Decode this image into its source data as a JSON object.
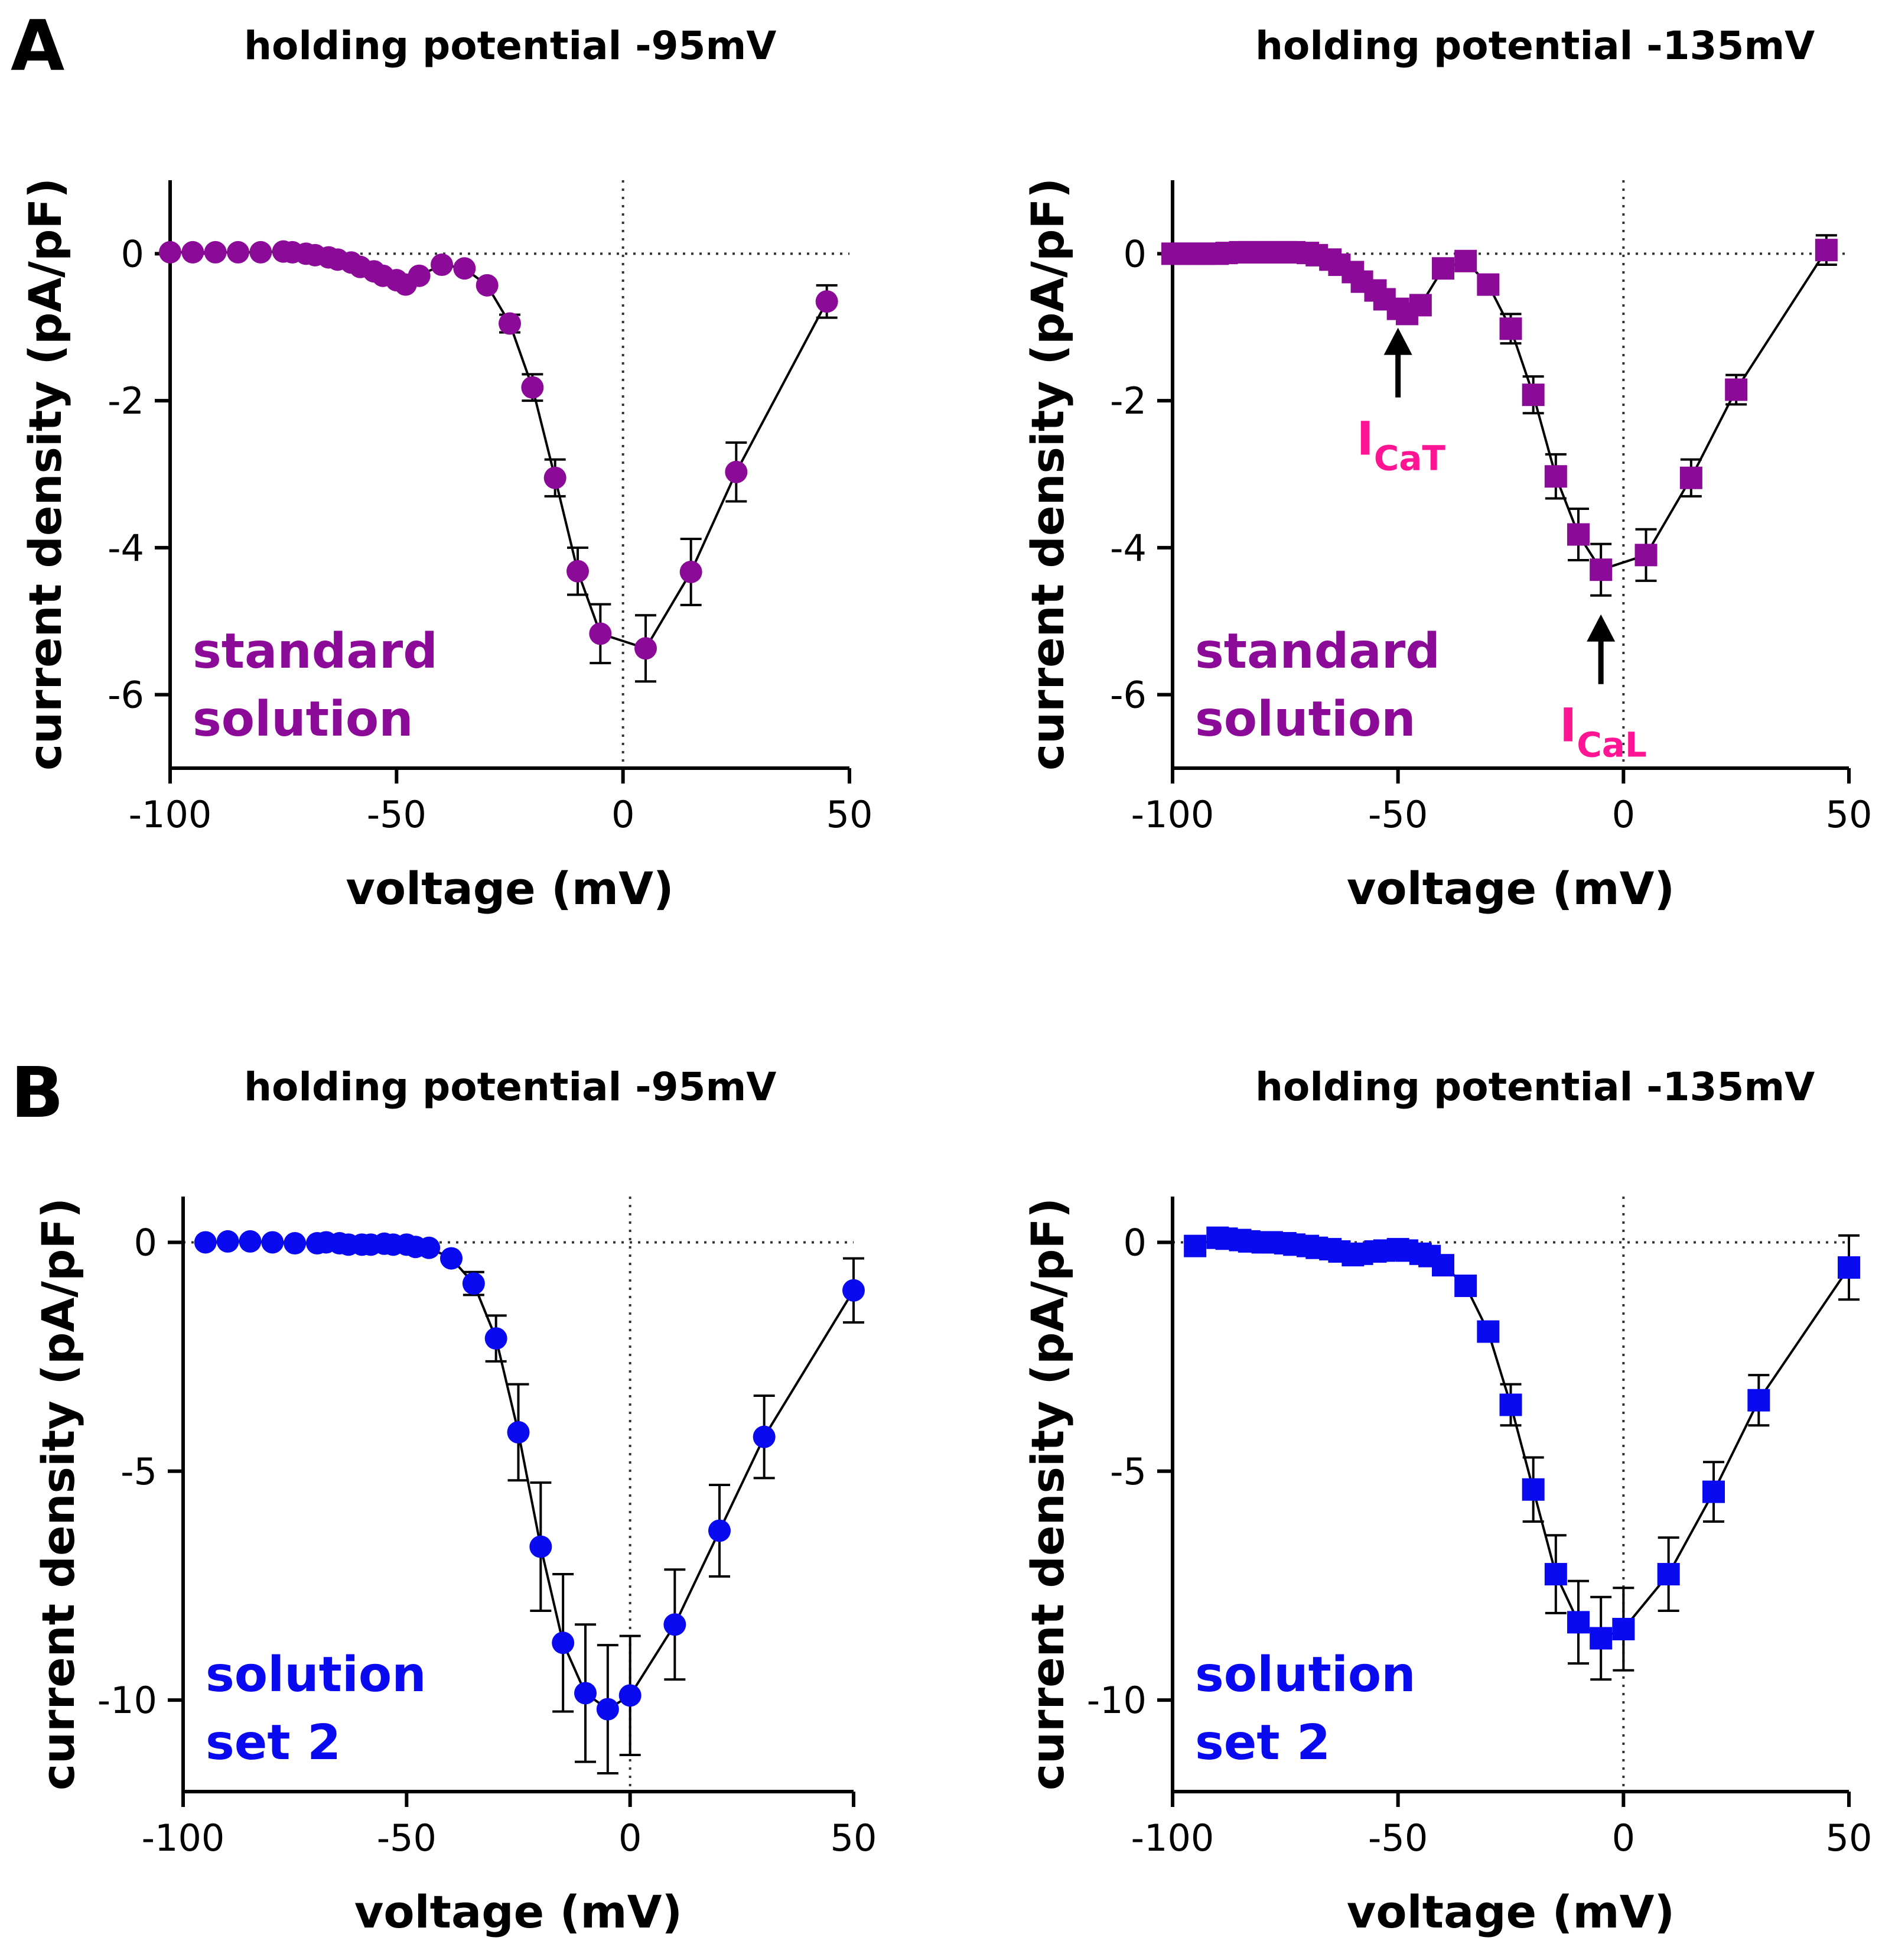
{
  "panel_letters": [
    "A",
    "B"
  ],
  "chart_data": [
    {
      "type": "scatter",
      "panel": "A",
      "title": "holding potential -95mV",
      "xlabel": "voltage (mV)",
      "ylabel": "current density (pA/pF)",
      "xlim": [
        -100,
        50
      ],
      "ylim": [
        -7,
        1
      ],
      "xticks": [
        -100,
        -50,
        0,
        50
      ],
      "yticks": [
        0,
        -2,
        -4,
        -6
      ],
      "x_tick_labels": [
        "-100",
        "-50",
        "0",
        "50"
      ],
      "y_tick_labels": [
        "0",
        "-2",
        "-4",
        "-6"
      ],
      "marker": "circle",
      "color": "#8B0A98",
      "solution_label": [
        "standard",
        "solution"
      ],
      "x": [
        -100,
        -95,
        -90,
        -85,
        -80,
        -75,
        -73,
        -70,
        -68,
        -65,
        -63,
        -60,
        -58,
        -55,
        -53,
        -50,
        -48,
        -45,
        -40,
        -35,
        -30,
        -25,
        -20,
        -15,
        -10,
        -5,
        5,
        15,
        25,
        45
      ],
      "y": [
        0.02,
        0.02,
        0.02,
        0.02,
        0.02,
        0.03,
        0.02,
        0.0,
        -0.02,
        -0.05,
        -0.08,
        -0.12,
        -0.18,
        -0.24,
        -0.3,
        -0.36,
        -0.42,
        -0.3,
        -0.15,
        -0.2,
        -0.43,
        -0.95,
        -1.82,
        -3.05,
        -4.32,
        -5.17,
        -5.37,
        -4.33,
        -2.97,
        -0.65
      ],
      "err": [
        0,
        0,
        0,
        0,
        0,
        0,
        0,
        0,
        0,
        0,
        0,
        0,
        0,
        0,
        0,
        0,
        0,
        0,
        0,
        0,
        0,
        0.12,
        0.18,
        0.25,
        0.32,
        0.4,
        0.45,
        0.45,
        0.4,
        0.22
      ],
      "connect_from": 20
    },
    {
      "type": "scatter",
      "panel": "A",
      "title": "holding potential -135mV",
      "xlabel": "voltage (mV)",
      "ylabel": "current density (pA/pF)",
      "xlim": [
        -100,
        50
      ],
      "ylim": [
        -7,
        1
      ],
      "xticks": [
        -100,
        -50,
        0,
        50
      ],
      "yticks": [
        0,
        -2,
        -4,
        -6
      ],
      "x_tick_labels": [
        "-100",
        "-50",
        "0",
        "50"
      ],
      "y_tick_labels": [
        "0",
        "-2",
        "-4",
        "-6"
      ],
      "marker": "square",
      "color": "#8B0A98",
      "solution_label": [
        "standard",
        "solution"
      ],
      "annotations": [
        {
          "text": "I",
          "sub": "CaT",
          "x": -50,
          "color": "#FF1493",
          "direction": "up"
        },
        {
          "text": "I",
          "sub": "CaL",
          "x": -5,
          "color": "#FF1493",
          "direction": "up"
        }
      ],
      "x": [
        -100,
        -98,
        -95,
        -93,
        -90,
        -88,
        -85,
        -83,
        -80,
        -78,
        -75,
        -73,
        -70,
        -68,
        -65,
        -63,
        -60,
        -58,
        -55,
        -53,
        -50,
        -48,
        -45,
        -40,
        -35,
        -30,
        -25,
        -20,
        -15,
        -10,
        -5,
        5,
        15,
        25,
        45
      ],
      "y": [
        0.0,
        0.0,
        0.0,
        0.0,
        0.0,
        0.01,
        0.02,
        0.02,
        0.02,
        0.02,
        0.02,
        0.02,
        0.01,
        -0.02,
        -0.08,
        -0.15,
        -0.25,
        -0.38,
        -0.5,
        -0.62,
        -0.75,
        -0.82,
        -0.7,
        -0.2,
        -0.1,
        -0.42,
        -1.02,
        -1.92,
        -3.03,
        -3.82,
        -4.3,
        -4.1,
        -3.05,
        -1.85,
        0.05
      ],
      "err": [
        0,
        0,
        0,
        0,
        0,
        0,
        0,
        0,
        0,
        0,
        0,
        0,
        0,
        0,
        0,
        0,
        0,
        0,
        0,
        0,
        0,
        0,
        0,
        0,
        0,
        0.12,
        0.2,
        0.25,
        0.3,
        0.35,
        0.35,
        0.35,
        0.25,
        0.2,
        0.2
      ],
      "connect_from": 25
    },
    {
      "type": "scatter",
      "panel": "B",
      "title": "holding potential -95mV",
      "xlabel": "voltage (mV)",
      "ylabel": "current density (pA/pF)",
      "xlim": [
        -100,
        50
      ],
      "ylim": [
        -12,
        1
      ],
      "xticks": [
        -100,
        -50,
        0,
        50
      ],
      "yticks": [
        0,
        -5,
        -10
      ],
      "x_tick_labels": [
        "-100",
        "-50",
        "0",
        "50"
      ],
      "y_tick_labels": [
        "0",
        "-5",
        "-10"
      ],
      "marker": "circle",
      "color": "#0A0AF0",
      "solution_label": [
        "solution",
        "set 2"
      ],
      "x": [
        -95,
        -90,
        -85,
        -80,
        -75,
        -70,
        -68,
        -65,
        -63,
        -60,
        -58,
        -55,
        -53,
        -50,
        -48,
        -45,
        -40,
        -35,
        -30,
        -25,
        -20,
        -15,
        -10,
        -5,
        0,
        10,
        20,
        30,
        50
      ],
      "y": [
        0.0,
        0.02,
        0.02,
        0.0,
        -0.02,
        -0.02,
        0.0,
        -0.02,
        -0.05,
        -0.05,
        -0.05,
        -0.03,
        -0.05,
        -0.05,
        -0.1,
        -0.12,
        -0.35,
        -0.9,
        -2.1,
        -4.15,
        -6.65,
        -8.75,
        -9.85,
        -10.2,
        -9.9,
        -8.35,
        -6.3,
        -4.25,
        -1.05
      ],
      "err": [
        0,
        0,
        0,
        0,
        0,
        0,
        0,
        0,
        0,
        0,
        0,
        0,
        0,
        0,
        0,
        0,
        0,
        0.25,
        0.5,
        1.05,
        1.4,
        1.5,
        1.5,
        1.4,
        1.3,
        1.2,
        1.0,
        0.9,
        0.7
      ],
      "connect_from": 16
    },
    {
      "type": "scatter",
      "panel": "B",
      "title": "holding potential -135mV",
      "xlabel": "voltage (mV)",
      "ylabel": "current density (pA/pF)",
      "xlim": [
        -100,
        50
      ],
      "ylim": [
        -12,
        1
      ],
      "xticks": [
        -100,
        -50,
        0,
        50
      ],
      "yticks": [
        0,
        -5,
        -10
      ],
      "x_tick_labels": [
        "-100",
        "-50",
        "0",
        "50"
      ],
      "y_tick_labels": [
        "0",
        "-5",
        "-10"
      ],
      "marker": "square",
      "color": "#0A0AF0",
      "solution_label": [
        "solution",
        "set 2"
      ],
      "x": [
        -95,
        -90,
        -88,
        -85,
        -83,
        -80,
        -78,
        -75,
        -73,
        -70,
        -68,
        -65,
        -63,
        -60,
        -58,
        -55,
        -53,
        -50,
        -48,
        -45,
        -43,
        -40,
        -35,
        -30,
        -25,
        -20,
        -15,
        -10,
        -5,
        0,
        10,
        20,
        30,
        50
      ],
      "y": [
        -0.08,
        0.1,
        0.08,
        0.05,
        0.02,
        0.0,
        0.0,
        -0.02,
        -0.05,
        -0.08,
        -0.12,
        -0.15,
        -0.2,
        -0.28,
        -0.25,
        -0.2,
        -0.18,
        -0.15,
        -0.18,
        -0.25,
        -0.3,
        -0.5,
        -0.95,
        -1.95,
        -3.55,
        -5.4,
        -7.25,
        -8.3,
        -8.65,
        -8.45,
        -7.25,
        -5.45,
        -3.45,
        -0.55
      ],
      "err": [
        0,
        0,
        0,
        0,
        0,
        0,
        0,
        0,
        0,
        0,
        0,
        0,
        0,
        0,
        0,
        0,
        0,
        0,
        0,
        0,
        0,
        0,
        0,
        0.2,
        0.45,
        0.7,
        0.85,
        0.9,
        0.9,
        0.9,
        0.8,
        0.65,
        0.55,
        0.7
      ],
      "connect_from": 22
    }
  ]
}
